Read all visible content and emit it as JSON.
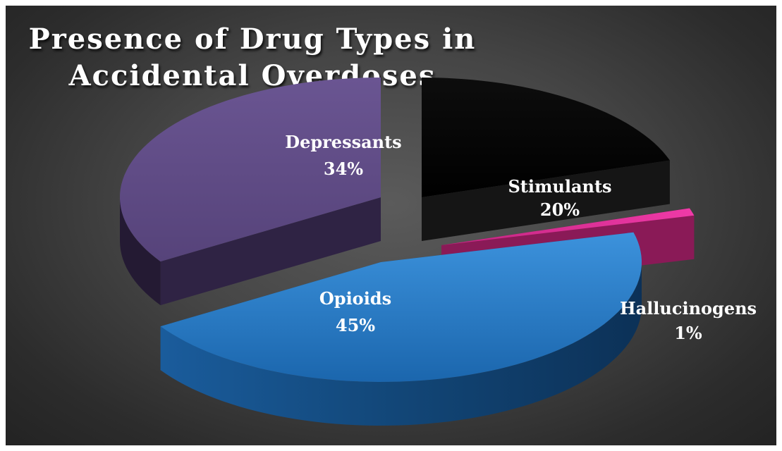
{
  "chart_data": {
    "type": "pie",
    "title": "Presence of Drug Types in Accidental Overdoses",
    "title_lines": [
      "Presence of Drug Types in",
      "Accidental Overdoses"
    ],
    "three_d": true,
    "exploded": true,
    "slices": [
      {
        "name": "Opioids",
        "value": 45,
        "label": "45%",
        "color": "#1f6fba"
      },
      {
        "name": "Depressants",
        "value": 34,
        "label": "34%",
        "color": "#5e4a82"
      },
      {
        "name": "Stimulants",
        "value": 20,
        "label": "20%",
        "color": "#000000"
      },
      {
        "name": "Hallucinogens",
        "value": 1,
        "label": "1%",
        "color": "#e3339a"
      }
    ]
  }
}
